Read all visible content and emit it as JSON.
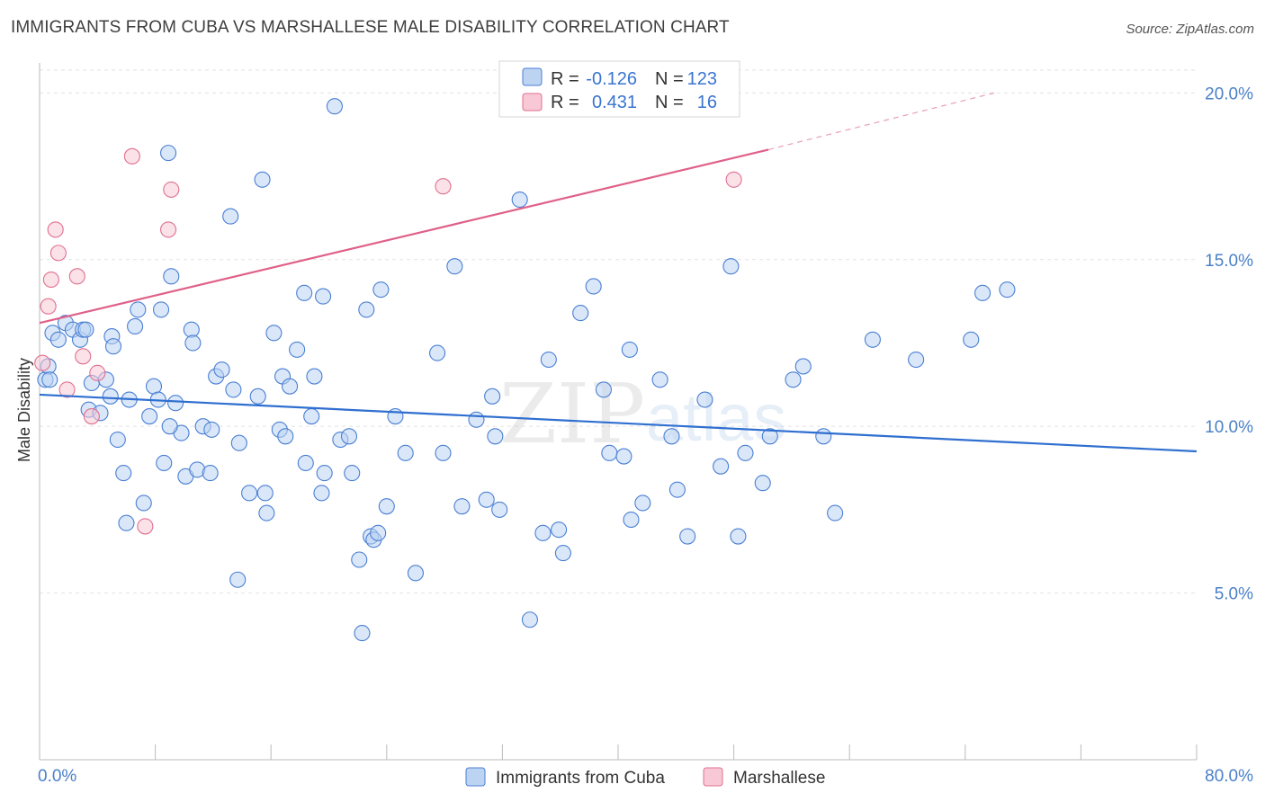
{
  "title": "IMMIGRANTS FROM CUBA VS MARSHALLESE MALE DISABILITY CORRELATION CHART",
  "source": "Source: ZipAtlas.com",
  "watermark": {
    "zip": "ZIP",
    "atlas": "atlas"
  },
  "colors": {
    "blue": "#4a7fd4",
    "blue_fill": "#bcd4f2",
    "pink": "#e0708f",
    "pink_fill": "#f8c8d6",
    "tick_text": "#4a80c8",
    "grid": "#e2e2e2"
  },
  "legend": {
    "blue": {
      "r_label": "R =",
      "r_value": "-0.126",
      "n_label": "N =",
      "n_value": "123"
    },
    "pink": {
      "r_label": "R =",
      "r_value": "0.431",
      "n_label": "N =",
      "n_value": "16"
    }
  },
  "chart_data": {
    "type": "scatter",
    "title": "IMMIGRANTS FROM CUBA VS MARSHALLESE MALE DISABILITY CORRELATION CHART",
    "xlabel": "",
    "ylabel": "Male Disability",
    "xlim": [
      0,
      80
    ],
    "ylim": [
      0,
      20.9
    ],
    "x_tick_labels": [
      "0.0%",
      "80.0%"
    ],
    "y_ticks": [
      5,
      10,
      15,
      20
    ],
    "y_tick_labels": [
      "5.0%",
      "10.0%",
      "15.0%",
      "20.0%"
    ],
    "grid": true,
    "legend_position": "top-center",
    "series": [
      {
        "name": "Immigrants from Cuba",
        "color": "#4a7fd4",
        "trend": {
          "x": [
            0,
            80
          ],
          "y": [
            10.95,
            9.25
          ]
        },
        "points": [
          [
            0.4,
            11.4
          ],
          [
            0.6,
            11.8
          ],
          [
            0.9,
            12.8
          ],
          [
            1.3,
            12.6
          ],
          [
            1.8,
            13.1
          ],
          [
            2.3,
            12.9
          ],
          [
            2.8,
            12.6
          ],
          [
            3.0,
            12.9
          ],
          [
            3.4,
            10.5
          ],
          [
            3.6,
            11.3
          ],
          [
            4.2,
            10.4
          ],
          [
            4.6,
            11.4
          ],
          [
            4.9,
            10.9
          ],
          [
            5.0,
            12.7
          ],
          [
            5.1,
            12.4
          ],
          [
            5.4,
            9.6
          ],
          [
            5.8,
            8.6
          ],
          [
            6.0,
            7.1
          ],
          [
            6.2,
            10.8
          ],
          [
            6.6,
            13.0
          ],
          [
            6.8,
            13.5
          ],
          [
            7.2,
            7.7
          ],
          [
            7.6,
            10.3
          ],
          [
            7.9,
            11.2
          ],
          [
            8.2,
            10.8
          ],
          [
            8.4,
            13.5
          ],
          [
            8.6,
            8.9
          ],
          [
            8.9,
            18.2
          ],
          [
            9.1,
            14.5
          ],
          [
            9.4,
            10.7
          ],
          [
            9.8,
            9.8
          ],
          [
            10.1,
            8.5
          ],
          [
            10.5,
            12.9
          ],
          [
            10.6,
            12.5
          ],
          [
            10.9,
            8.7
          ],
          [
            11.3,
            10.0
          ],
          [
            11.8,
            8.6
          ],
          [
            11.9,
            9.9
          ],
          [
            12.2,
            11.5
          ],
          [
            12.6,
            11.7
          ],
          [
            13.2,
            16.3
          ],
          [
            13.4,
            11.1
          ],
          [
            13.8,
            9.5
          ],
          [
            13.7,
            5.4
          ],
          [
            14.5,
            8.0
          ],
          [
            15.1,
            10.9
          ],
          [
            15.4,
            17.4
          ],
          [
            15.6,
            8.0
          ],
          [
            15.7,
            7.4
          ],
          [
            16.2,
            12.8
          ],
          [
            16.6,
            9.9
          ],
          [
            16.8,
            11.5
          ],
          [
            17.0,
            9.7
          ],
          [
            17.3,
            11.2
          ],
          [
            17.8,
            12.3
          ],
          [
            18.3,
            14.0
          ],
          [
            18.4,
            8.9
          ],
          [
            18.8,
            10.3
          ],
          [
            19.0,
            11.5
          ],
          [
            19.6,
            13.9
          ],
          [
            19.7,
            8.6
          ],
          [
            19.5,
            8.0
          ],
          [
            20.4,
            19.6
          ],
          [
            20.8,
            9.6
          ],
          [
            21.4,
            9.7
          ],
          [
            21.6,
            8.6
          ],
          [
            22.1,
            6.0
          ],
          [
            22.3,
            3.8
          ],
          [
            22.6,
            13.5
          ],
          [
            22.9,
            6.7
          ],
          [
            23.1,
            6.6
          ],
          [
            23.4,
            6.8
          ],
          [
            23.6,
            14.1
          ],
          [
            24.0,
            7.6
          ],
          [
            24.6,
            10.3
          ],
          [
            25.3,
            9.2
          ],
          [
            26.0,
            5.6
          ],
          [
            27.5,
            12.2
          ],
          [
            27.9,
            9.2
          ],
          [
            28.7,
            14.8
          ],
          [
            29.2,
            7.6
          ],
          [
            30.2,
            10.2
          ],
          [
            30.9,
            7.8
          ],
          [
            31.3,
            10.9
          ],
          [
            31.5,
            9.7
          ],
          [
            31.8,
            7.5
          ],
          [
            33.2,
            16.8
          ],
          [
            33.9,
            4.2
          ],
          [
            34.8,
            6.8
          ],
          [
            35.2,
            12.0
          ],
          [
            35.9,
            6.9
          ],
          [
            36.2,
            6.2
          ],
          [
            37.4,
            13.4
          ],
          [
            38.3,
            14.2
          ],
          [
            39.0,
            11.1
          ],
          [
            39.4,
            9.2
          ],
          [
            40.4,
            9.1
          ],
          [
            40.8,
            12.3
          ],
          [
            40.9,
            7.2
          ],
          [
            41.7,
            7.7
          ],
          [
            42.9,
            11.4
          ],
          [
            43.7,
            9.7
          ],
          [
            44.1,
            8.1
          ],
          [
            44.8,
            6.7
          ],
          [
            46.0,
            10.8
          ],
          [
            47.1,
            8.8
          ],
          [
            47.8,
            14.8
          ],
          [
            48.3,
            6.7
          ],
          [
            48.8,
            9.2
          ],
          [
            50.0,
            8.3
          ],
          [
            50.5,
            9.7
          ],
          [
            52.1,
            11.4
          ],
          [
            52.8,
            11.8
          ],
          [
            54.2,
            9.7
          ],
          [
            55.0,
            7.4
          ],
          [
            57.6,
            12.6
          ],
          [
            60.6,
            12.0
          ],
          [
            64.4,
            12.6
          ],
          [
            65.2,
            14.0
          ],
          [
            66.9,
            14.1
          ],
          [
            0.7,
            11.4
          ],
          [
            3.2,
            12.9
          ],
          [
            9.0,
            10.0
          ]
        ]
      },
      {
        "name": "Marshallese",
        "color": "#e0708f",
        "trend": {
          "x": [
            0,
            50.4
          ],
          "y": [
            13.1,
            18.3
          ]
        },
        "trend_dashed": {
          "x": [
            50.4,
            66
          ],
          "y": [
            18.3,
            20.0
          ]
        },
        "points": [
          [
            0.2,
            11.9
          ],
          [
            0.6,
            13.6
          ],
          [
            0.8,
            14.4
          ],
          [
            1.1,
            15.9
          ],
          [
            1.3,
            15.2
          ],
          [
            1.9,
            11.1
          ],
          [
            2.6,
            14.5
          ],
          [
            3.0,
            12.1
          ],
          [
            3.6,
            10.3
          ],
          [
            4.0,
            11.6
          ],
          [
            6.4,
            18.1
          ],
          [
            7.3,
            7.0
          ],
          [
            8.9,
            15.9
          ],
          [
            9.1,
            17.1
          ],
          [
            27.9,
            17.2
          ],
          [
            48.0,
            17.4
          ]
        ]
      }
    ]
  },
  "bottom_legend": {
    "blue_label": "Immigrants from Cuba",
    "pink_label": "Marshallese"
  }
}
